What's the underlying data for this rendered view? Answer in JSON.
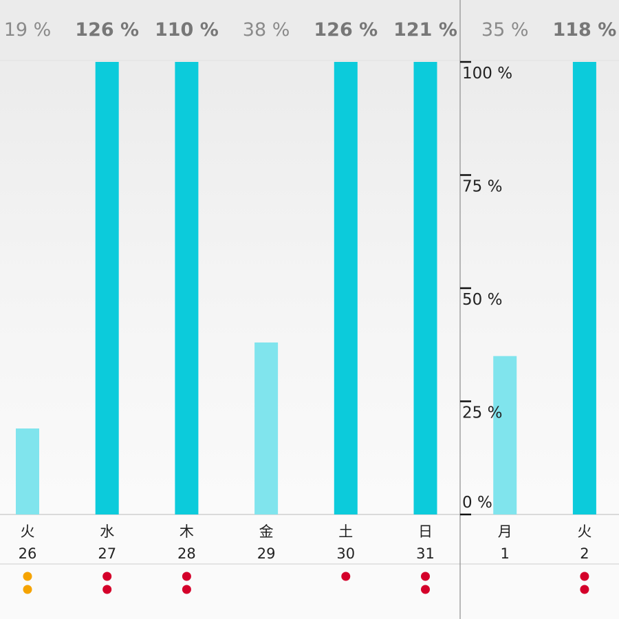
{
  "chart_data": {
    "type": "bar",
    "categories": [
      "26",
      "27",
      "28",
      "29",
      "30",
      "31",
      "1",
      "2"
    ],
    "weekdays": [
      "火",
      "水",
      "木",
      "金",
      "土",
      "日",
      "月",
      "火"
    ],
    "values": [
      19,
      126,
      110,
      38,
      126,
      121,
      35,
      118
    ],
    "value_labels": [
      "19 %",
      "126 %",
      "110 %",
      "38 %",
      "126 %",
      "121 %",
      "35 %",
      "118 %"
    ],
    "ylim": [
      0,
      100
    ],
    "yticks": [
      0,
      25,
      50,
      75,
      100
    ],
    "ytick_labels": [
      "0 %",
      "25 %",
      "50 %",
      "75 %",
      "100 %"
    ],
    "dots": [
      {
        "count": 2,
        "color": "#f5a300"
      },
      {
        "count": 2,
        "color": "#d4002a"
      },
      {
        "count": 2,
        "color": "#d4002a"
      },
      {
        "count": 0,
        "color": "#d4002a"
      },
      {
        "count": 1,
        "color": "#d4002a"
      },
      {
        "count": 2,
        "color": "#d4002a"
      },
      {
        "count": 0,
        "color": "#d4002a"
      },
      {
        "count": 2,
        "color": "#d4002a"
      }
    ],
    "colors": {
      "over": "#0ccbdb",
      "under": "#80e4ed"
    },
    "xlabel": "",
    "ylabel": ""
  }
}
